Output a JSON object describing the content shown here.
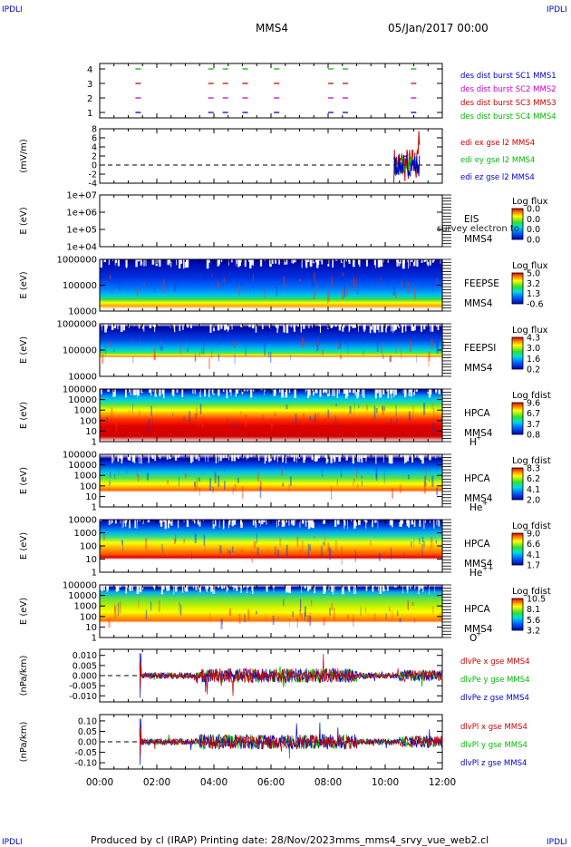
{
  "corner_labels": {
    "top_left": "IPDLI",
    "top_right": "IPDLI",
    "bottom_left": "IPDLI",
    "bottom_right": "IPDLI"
  },
  "header": {
    "spacecraft": "MMS4",
    "date": "05/Jan/2017 00:00"
  },
  "footer": {
    "produced_by": "Produced by cl (IRAP)",
    "printing_date": "Printing date: 28/Nov/2023",
    "file": "mms_mms4_srvy_vue_web2.cl"
  },
  "chart_data": [
    {
      "type": "line",
      "panel": "burst",
      "ylabel": "",
      "y_ticks": [
        "4",
        "3",
        "2",
        "1"
      ],
      "legend": [
        "des dist burst SC1 MMS1",
        "des dist burst SC2 MMS2",
        "des dist burst SC3 MMS3",
        "des dist burst SC4 MMS4"
      ],
      "legend_colors": [
        "#0000cc",
        "#cc00cc",
        "#cc0000",
        "#00bb00"
      ],
      "series": [
        {
          "level": 4,
          "color": "#00bb00",
          "segments": [
            [
              1.25,
              1.45
            ],
            [
              3.8,
              4.5
            ],
            [
              5.0,
              5.2
            ],
            [
              6.1,
              6.5
            ],
            [
              8.0,
              8.8
            ],
            [
              10.9,
              11.2
            ]
          ]
        },
        {
          "level": 3,
          "color": "#cc0000",
          "segments": [
            [
              1.25,
              1.45
            ],
            [
              3.8,
              4.5
            ],
            [
              5.0,
              5.2
            ],
            [
              6.1,
              6.5
            ],
            [
              8.0,
              8.8
            ],
            [
              10.9,
              11.2
            ]
          ]
        },
        {
          "level": 2,
          "color": "#cc00cc",
          "segments": [
            [
              1.25,
              1.45
            ],
            [
              3.8,
              4.5
            ],
            [
              5.0,
              5.2
            ],
            [
              6.1,
              6.5
            ],
            [
              8.0,
              8.8
            ],
            [
              10.9,
              11.2
            ]
          ]
        },
        {
          "level": 1,
          "color": "#0000cc",
          "segments": [
            [
              1.25,
              1.45
            ],
            [
              3.8,
              4.5
            ],
            [
              5.0,
              5.2
            ],
            [
              6.1,
              6.5
            ],
            [
              8.0,
              8.8
            ],
            [
              10.9,
              11.2
            ]
          ]
        }
      ]
    },
    {
      "type": "line",
      "panel": "edi",
      "ylabel": "(mV/m)",
      "y_ticks": [
        "8",
        "6",
        "4",
        "2",
        "0",
        "-2",
        "-4"
      ],
      "legend": [
        "edi ex gse l2 MMS4",
        "edi ey gse l2 MMS4",
        "edi ez gse l2 MMS4"
      ],
      "legend_colors": [
        "#cc0000",
        "#00bb00",
        "#0000cc"
      ],
      "ylim": [
        -4,
        8
      ],
      "event_window": [
        10.3,
        11.2
      ]
    },
    {
      "type": "heatmap",
      "panel": "eis",
      "ylabel": "E (eV)",
      "y_ticks": [
        "1e+07",
        "1e+06",
        "1e+05",
        "1e+04"
      ],
      "instrument": "EIS",
      "spacecraft": "MMS4",
      "note": "survey electron to",
      "colorbar_title": "Log flux",
      "colorbar_ticks": [
        "0.0",
        "0.0",
        "0.0",
        "0.0"
      ],
      "empty": true
    },
    {
      "type": "heatmap",
      "panel": "feepse",
      "ylabel": "E (eV)",
      "y_ticks": [
        "1000000",
        "100000",
        "10000"
      ],
      "instrument": "FEEPSE",
      "spacecraft": "MMS4",
      "colorbar_title": "Log flux",
      "colorbar_ticks": [
        "5.0",
        "3.2",
        "1.3",
        "-0.6"
      ]
    },
    {
      "type": "heatmap",
      "panel": "feepsi",
      "ylabel": "E (eV)",
      "y_ticks": [
        "1000000",
        "100000",
        "10000"
      ],
      "instrument": "FEEPSI",
      "spacecraft": "MMS4",
      "colorbar_title": "Log flux",
      "colorbar_ticks": [
        "4.3",
        "3.0",
        "1.6",
        "0.2"
      ]
    },
    {
      "type": "heatmap",
      "panel": "hpca_h",
      "ylabel": "E (eV)",
      "y_ticks": [
        "100000",
        "10000",
        "1000",
        "100",
        "10",
        "1"
      ],
      "instrument": "HPCA",
      "spacecraft": "MMS4",
      "species": "H",
      "species_sup": "+",
      "colorbar_title": "Log fdist",
      "colorbar_ticks": [
        "9.6",
        "6.7",
        "3.7",
        "0.8"
      ]
    },
    {
      "type": "heatmap",
      "panel": "hpca_he1",
      "ylabel": "E (eV)",
      "y_ticks": [
        "100000",
        "10000",
        "1000",
        "100",
        "10",
        "1"
      ],
      "instrument": "HPCA",
      "spacecraft": "MMS4",
      "species": "He",
      "species_sup": "+",
      "colorbar_title": "Log fdist",
      "colorbar_ticks": [
        "8.3",
        "6.2",
        "4.1",
        "2.0"
      ]
    },
    {
      "type": "heatmap",
      "panel": "hpca_he2",
      "ylabel": "E (eV)",
      "y_ticks": [
        "10000",
        "1000",
        "100",
        "10",
        "1"
      ],
      "instrument": "HPCA",
      "spacecraft": "MMS4",
      "species": "He",
      "species_sup": "++",
      "colorbar_title": "Log fdist",
      "colorbar_ticks": [
        "9.0",
        "6.6",
        "4.1",
        "1.7"
      ]
    },
    {
      "type": "heatmap",
      "panel": "hpca_o",
      "ylabel": "E (eV)",
      "y_ticks": [
        "100000",
        "10000",
        "1000",
        "100",
        "10",
        "1"
      ],
      "instrument": "HPCA",
      "spacecraft": "MMS4",
      "species": "O",
      "species_sup": "+",
      "colorbar_title": "Log fdist",
      "colorbar_ticks": [
        "10.5",
        "8.1",
        "5.6",
        "3.2"
      ]
    },
    {
      "type": "line",
      "panel": "divpe",
      "ylabel": "(nPa/km)",
      "y_ticks": [
        "0.010",
        "0.005",
        "0.000",
        "-0.005",
        "-0.010"
      ],
      "ylim": [
        -0.013,
        0.013
      ],
      "legend": [
        "dlvPe x gse MMS4",
        "dlvPe y gse MMS4",
        "dlvPe z gse MMS4"
      ],
      "legend_colors": [
        "#cc0000",
        "#00bb00",
        "#0000cc"
      ],
      "start": 1.4
    },
    {
      "type": "line",
      "panel": "divpi",
      "ylabel": "(nPa/km)",
      "y_ticks": [
        "0.10",
        "0.05",
        "0.00",
        "-0.05",
        "-0.10"
      ],
      "ylim": [
        -0.13,
        0.13
      ],
      "legend": [
        "dlvPl x gse MMS4",
        "dlvPl y gse MMS4",
        "dlvPl z gse MMS4"
      ],
      "legend_colors": [
        "#cc0000",
        "#00bb00",
        "#0000cc"
      ],
      "start": 1.4
    }
  ],
  "x_axis": {
    "range_hours": [
      0,
      12
    ],
    "tick_labels": [
      "00:00",
      "02:00",
      "04:00",
      "06:00",
      "08:00",
      "10:00",
      "12:00"
    ]
  }
}
